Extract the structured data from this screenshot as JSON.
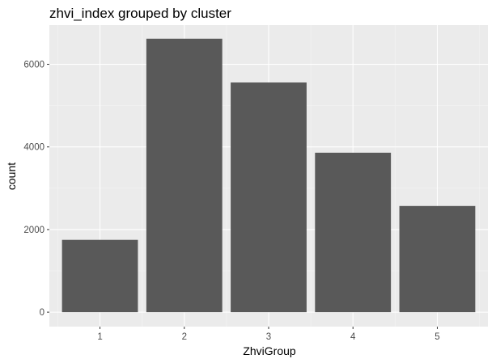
{
  "chart_data": {
    "type": "bar",
    "title": "zhvi_index grouped by cluster",
    "xlabel": "ZhviGroup",
    "ylabel": "count",
    "categories": [
      "1",
      "2",
      "3",
      "4",
      "5"
    ],
    "values": [
      1750,
      6620,
      5560,
      3860,
      2570
    ],
    "ylim": [
      -350,
      6950
    ],
    "yticks": [
      0,
      2000,
      4000,
      6000
    ],
    "yticklabels": [
      "0",
      "2000",
      "4000",
      "6000"
    ],
    "grid": true,
    "legend": "none",
    "colors": {
      "bar": "#595959",
      "panel": "#ebebeb",
      "grid_major": "#ffffff",
      "grid_minor": "#f2f2f2",
      "tick_text": "#4d4d4d",
      "tick_mark": "#333333"
    }
  }
}
